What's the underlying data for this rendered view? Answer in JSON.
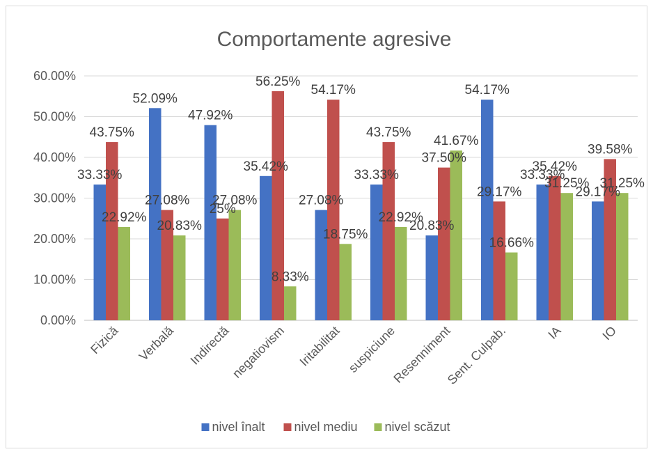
{
  "chart_data": {
    "type": "bar",
    "title": "Comportamente agresive",
    "categories": [
      "Fizică",
      "Verbală",
      "Indirectă",
      "negatiovism",
      "Iritabilitat",
      "suspiciune",
      "Resenniment",
      "Sent. Culpab.",
      "IA",
      "IO"
    ],
    "series": [
      {
        "name": "nivel înalt",
        "color": "#4472c4",
        "values": [
          33.33,
          52.09,
          47.92,
          35.42,
          27.08,
          33.33,
          20.83,
          54.17,
          33.33,
          29.17
        ],
        "labels": [
          "33.33%",
          "52.09%",
          "47.92%",
          "35.42%",
          "27.08%",
          "33.33%",
          "20.83%",
          "54.17%",
          "33.33%",
          "29.17%"
        ]
      },
      {
        "name": "nivel mediu",
        "color": "#c0504d",
        "values": [
          43.75,
          27.08,
          25,
          56.25,
          54.17,
          43.75,
          37.5,
          29.17,
          35.42,
          39.58
        ],
        "labels": [
          "43.75%",
          "27.08%",
          "25%",
          "56.25%",
          "54.17%",
          "43.75%",
          "37.50%",
          "29.17%",
          "35.42%",
          "39.58%"
        ]
      },
      {
        "name": "nivel scăzut",
        "color": "#9bbb59",
        "values": [
          22.92,
          20.83,
          27.08,
          8.33,
          18.75,
          22.92,
          41.67,
          16.66,
          31.25,
          31.25
        ],
        "labels": [
          "22.92%",
          "20.83%",
          "27.08%",
          "8.33%",
          "18.75%",
          "22.92%",
          "41.67%",
          "16.66%",
          "31.25%",
          "31.25%"
        ]
      }
    ],
    "ylim": [
      0,
      60
    ],
    "yticks": [
      0,
      10,
      20,
      30,
      40,
      50,
      60
    ],
    "ytick_labels": [
      "0.00%",
      "10.00%",
      "20.00%",
      "30.00%",
      "40.00%",
      "50.00%",
      "60.00%"
    ],
    "grid": true,
    "legend": "bottom",
    "gridline_color": "#d9d9d9",
    "axis_line_color": "#bfbfbf"
  }
}
